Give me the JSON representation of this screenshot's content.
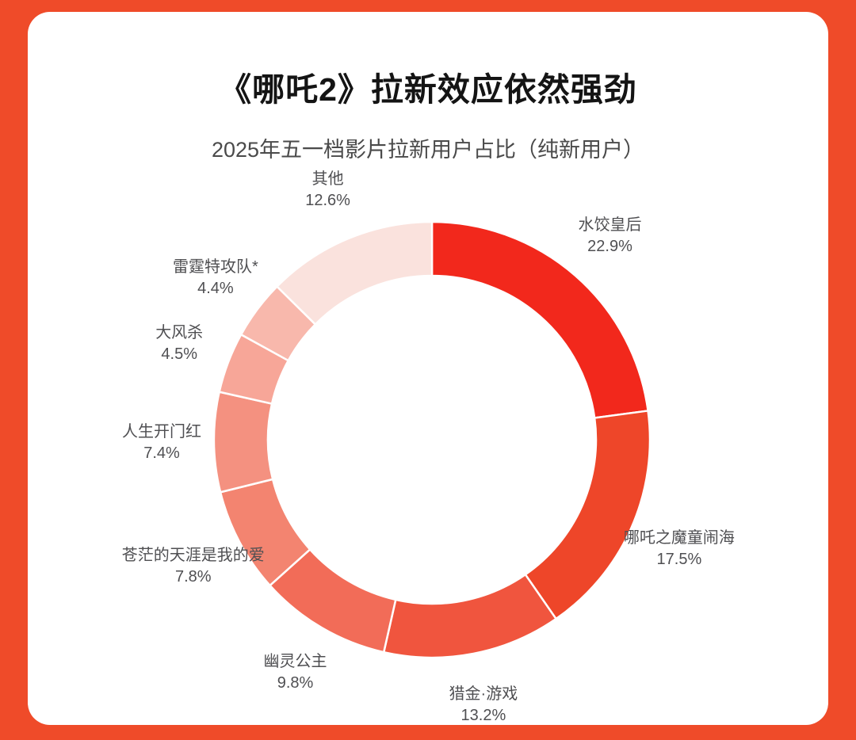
{
  "page": {
    "frame_color": "#ef4b29",
    "card_color": "#ffffff"
  },
  "header": {
    "title": "《哪吒2》拉新效应依然强劲",
    "subtitle": "2025年五一档影片拉新用户占比（纯新用户）"
  },
  "chart_data": {
    "type": "pie",
    "subtype": "donut",
    "title": "《哪吒2》拉新效应依然强劲",
    "subtitle": "2025年五一档影片拉新用户占比（纯新用户）",
    "unit": "%",
    "start_angle_deg": 0,
    "direction": "clockwise",
    "legend_position": "none",
    "labels_position": "outside",
    "slices": [
      {
        "label": "水饺皇后",
        "value": 22.9,
        "display": "22.9%",
        "color": "#f2281c"
      },
      {
        "label": "哪吒之魔童闹海",
        "value": 17.5,
        "display": "17.5%",
        "color": "#ee4629"
      },
      {
        "label": "猎金·游戏",
        "value": 13.2,
        "display": "13.2%",
        "color": "#f0553e"
      },
      {
        "label": "幽灵公主",
        "value": 9.8,
        "display": "9.8%",
        "color": "#f26c58"
      },
      {
        "label": "苍茫的天涯是我的爱",
        "value": 7.8,
        "display": "7.8%",
        "color": "#f38470"
      },
      {
        "label": "人生开门红",
        "value": 7.4,
        "display": "7.4%",
        "color": "#f49180"
      },
      {
        "label": "大风杀",
        "value": 4.5,
        "display": "4.5%",
        "color": "#f7a698"
      },
      {
        "label": "雷霆特攻队*",
        "value": 4.4,
        "display": "4.4%",
        "color": "#f8b8ac"
      },
      {
        "label": "其他",
        "value": 12.6,
        "display": "12.6%",
        "color": "#fae2dd"
      }
    ]
  }
}
